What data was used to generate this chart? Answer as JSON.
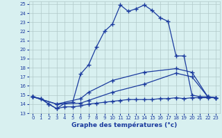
{
  "line1_x": [
    0,
    1,
    2,
    3,
    4,
    5,
    6,
    7,
    8,
    9,
    10,
    11,
    12,
    13,
    14,
    15,
    16,
    17,
    18,
    19,
    20,
    21,
    22,
    23
  ],
  "line1_y": [
    14.8,
    14.6,
    14.0,
    13.5,
    14.1,
    14.2,
    17.3,
    18.3,
    20.3,
    22.0,
    22.8,
    24.9,
    24.2,
    24.5,
    24.9,
    24.3,
    23.5,
    23.1,
    19.3,
    19.3,
    15.0,
    14.8,
    14.8,
    14.7
  ],
  "line2_x": [
    0,
    3,
    6,
    7,
    10,
    14,
    18,
    20,
    22,
    23
  ],
  "line2_y": [
    14.8,
    14.0,
    14.6,
    15.3,
    16.6,
    17.5,
    17.9,
    17.5,
    14.8,
    14.7
  ],
  "line3_x": [
    0,
    3,
    6,
    7,
    10,
    14,
    18,
    20,
    22,
    23
  ],
  "line3_y": [
    14.8,
    14.0,
    14.1,
    14.4,
    15.3,
    16.2,
    17.4,
    17.0,
    14.8,
    14.7
  ],
  "line4_x": [
    0,
    1,
    2,
    3,
    4,
    5,
    6,
    7,
    8,
    9,
    10,
    11,
    12,
    13,
    14,
    15,
    16,
    17,
    18,
    19,
    20,
    21,
    22,
    23
  ],
  "line4_y": [
    14.8,
    14.6,
    14.0,
    13.5,
    13.7,
    13.7,
    13.8,
    14.0,
    14.1,
    14.2,
    14.3,
    14.4,
    14.5,
    14.5,
    14.5,
    14.5,
    14.6,
    14.6,
    14.7,
    14.6,
    14.7,
    14.7,
    14.7,
    14.7
  ],
  "line_color": "#1a3a9e",
  "bg_color": "#d8f0f0",
  "grid_color": "#b0c8c8",
  "xlabel": "Graphe des températures (°c)",
  "xlim": [
    -0.5,
    23.5
  ],
  "ylim": [
    13,
    25.3
  ],
  "yticks": [
    13,
    14,
    15,
    16,
    17,
    18,
    19,
    20,
    21,
    22,
    23,
    24,
    25
  ],
  "xticks": [
    0,
    1,
    2,
    3,
    4,
    5,
    6,
    7,
    8,
    9,
    10,
    11,
    12,
    13,
    14,
    15,
    16,
    17,
    18,
    19,
    20,
    21,
    22,
    23
  ],
  "marker": "+",
  "markersize": 4,
  "linewidth": 0.9
}
